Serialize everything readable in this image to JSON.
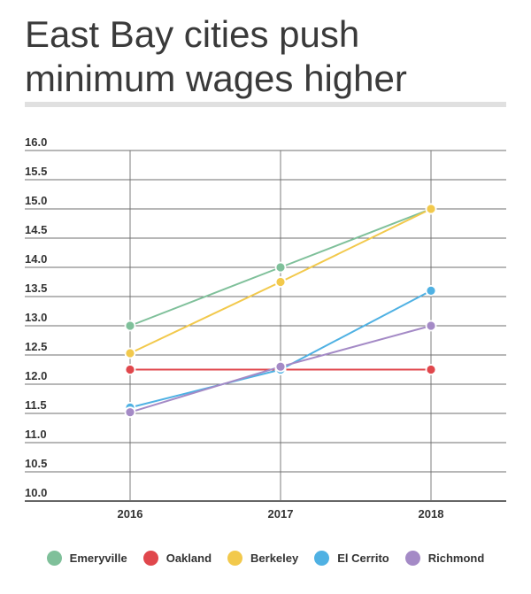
{
  "title": "East Bay cities push minimum wages higher",
  "chart_data": {
    "type": "line",
    "x": [
      "2016",
      "2017",
      "2018"
    ],
    "yticks": [
      "16.0",
      "15.5",
      "15.0",
      "14.5",
      "14.0",
      "13.5",
      "13.0",
      "12.5",
      "12.0",
      "11.5",
      "11.0",
      "10.5",
      "10.0"
    ],
    "ylim": [
      10.0,
      16.0
    ],
    "grid": true,
    "legend_position": "bottom",
    "series": [
      {
        "name": "Emeryville",
        "color": "#7fc09a",
        "values": [
          13.0,
          14.0,
          15.0
        ]
      },
      {
        "name": "Oakland",
        "color": "#e0474c",
        "values": [
          12.25,
          12.25,
          12.25
        ]
      },
      {
        "name": "Berkeley",
        "color": "#f2c94c",
        "values": [
          12.53,
          13.75,
          15.0
        ]
      },
      {
        "name": "El Cerrito",
        "color": "#4fb1e3",
        "values": [
          11.6,
          12.25,
          13.6
        ]
      },
      {
        "name": "Richmond",
        "color": "#a48ac6",
        "values": [
          11.52,
          12.3,
          13.0
        ]
      }
    ]
  }
}
